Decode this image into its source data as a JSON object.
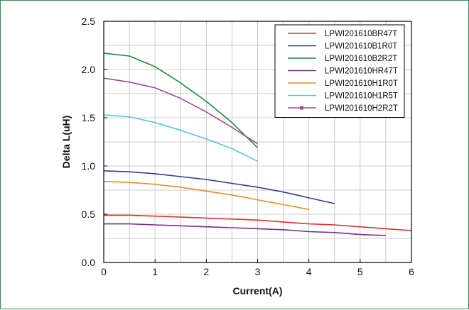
{
  "chart_data": {
    "type": "line",
    "title": "",
    "xlabel": "Current(A)",
    "ylabel": "Delta L(uH)",
    "xlim": [
      0,
      6
    ],
    "ylim": [
      0,
      2.5
    ],
    "grid": true,
    "legend_position": "top-right",
    "x_ticks": [
      "0",
      "1",
      "2",
      "3",
      "4",
      "5",
      "6"
    ],
    "y_ticks": [
      "0.0",
      "0.5",
      "1.0",
      "1.5",
      "2.0",
      "2.5"
    ],
    "x_tick_values": [
      0,
      1,
      2,
      3,
      4,
      5,
      6
    ],
    "y_tick_values": [
      0,
      0.5,
      1.0,
      1.5,
      2.0,
      2.5
    ],
    "series": [
      {
        "name": "LPWI201610BR47T",
        "color": "#e03030",
        "marker": "none",
        "x": [
          0,
          0.5,
          1,
          1.5,
          2,
          2.5,
          3,
          3.5,
          4,
          4.5,
          5,
          5.5,
          6
        ],
        "y": [
          0.49,
          0.49,
          0.48,
          0.47,
          0.46,
          0.45,
          0.44,
          0.42,
          0.4,
          0.39,
          0.37,
          0.35,
          0.33
        ]
      },
      {
        "name": "LPWI201610B1R0T",
        "color": "#2a3f8f",
        "marker": "none",
        "x": [
          0,
          0.5,
          1,
          1.5,
          2,
          2.5,
          3,
          3.5,
          4,
          4.5
        ],
        "y": [
          0.95,
          0.94,
          0.92,
          0.89,
          0.86,
          0.82,
          0.78,
          0.73,
          0.67,
          0.61
        ]
      },
      {
        "name": "LPWI201610B2R2T",
        "color": "#1f8a3a",
        "marker": "none",
        "x": [
          0,
          0.5,
          1,
          1.5,
          2,
          2.5,
          3
        ],
        "y": [
          2.17,
          2.14,
          2.03,
          1.86,
          1.67,
          1.45,
          1.19
        ]
      },
      {
        "name": "LPWI201610HR47T",
        "color": "#7a2a8c",
        "marker": "none",
        "x": [
          0,
          0.5,
          1,
          1.5,
          2,
          2.5,
          3,
          3.5,
          4,
          4.5,
          5,
          5.5
        ],
        "y": [
          0.4,
          0.4,
          0.39,
          0.38,
          0.37,
          0.36,
          0.35,
          0.34,
          0.32,
          0.31,
          0.29,
          0.28
        ]
      },
      {
        "name": "LPWI201610H1R0T",
        "color": "#f08a24",
        "marker": "none",
        "x": [
          0,
          0.5,
          1,
          1.5,
          2,
          2.5,
          3,
          3.5,
          4
        ],
        "y": [
          0.84,
          0.83,
          0.81,
          0.78,
          0.74,
          0.7,
          0.65,
          0.6,
          0.55
        ]
      },
      {
        "name": "LPWI201610H1R5T",
        "color": "#5cc3dd",
        "marker": "none",
        "x": [
          0,
          0.5,
          1,
          1.5,
          2,
          2.5,
          3
        ],
        "y": [
          1.53,
          1.51,
          1.45,
          1.37,
          1.28,
          1.18,
          1.05
        ]
      },
      {
        "name": "LPWI201610H2R2T",
        "color": "#9a4f8f",
        "marker": "square",
        "x": [
          0,
          0.5,
          1,
          1.5,
          2,
          2.5,
          3
        ],
        "y": [
          1.91,
          1.87,
          1.81,
          1.7,
          1.56,
          1.4,
          1.23
        ]
      }
    ]
  }
}
